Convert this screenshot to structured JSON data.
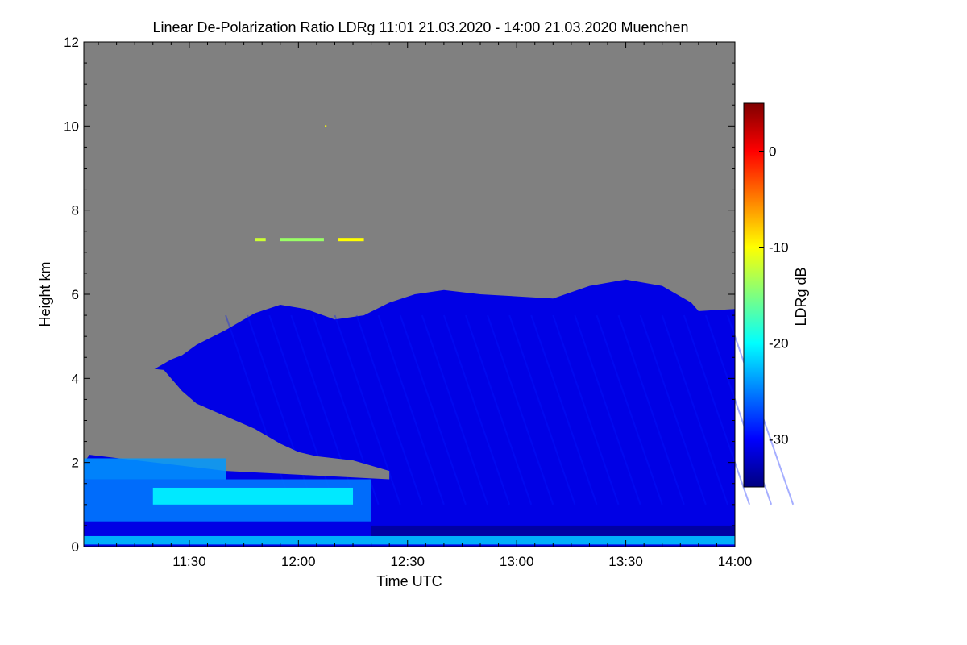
{
  "chart_data": {
    "type": "heatmap",
    "title": "Linear De-Polarization Ratio LDRg   11:01 21.03.2020 - 14:00 21.03.2020 Muenchen",
    "xlabel": "Time UTC",
    "ylabel": "Height km",
    "x_range_min": [
      661,
      840
    ],
    "x_ticks_min": [
      690,
      720,
      750,
      780,
      810,
      840
    ],
    "x_tick_labels": [
      "11:30",
      "12:00",
      "12:30",
      "13:00",
      "13:30",
      "14:00"
    ],
    "ylim": [
      0,
      12
    ],
    "y_ticks": [
      0,
      2,
      4,
      6,
      8,
      10,
      12
    ],
    "y_tick_labels": [
      "0",
      "2",
      "4",
      "6",
      "8",
      "10",
      "12"
    ],
    "background_color": "#808080",
    "colorbar": {
      "label": "LDRg dB",
      "range": [
        -35,
        5
      ],
      "ticks": [
        0,
        -10,
        -20,
        -30
      ],
      "tick_labels": [
        "0",
        "-10",
        "-20",
        "-30"
      ],
      "colormap": [
        "#00007f",
        "#0000ff",
        "#007fff",
        "#00ffff",
        "#7fff7f",
        "#ffff00",
        "#ff7f00",
        "#ff0000",
        "#7f0000"
      ]
    },
    "cloud_top_km": {
      "time_min": [
        680,
        685,
        688,
        692,
        700,
        708,
        715,
        722,
        730,
        738,
        745,
        752,
        760,
        770,
        780,
        790,
        800,
        810,
        820,
        828,
        830,
        840
      ],
      "height": [
        4.2,
        4.45,
        4.55,
        4.8,
        5.15,
        5.55,
        5.75,
        5.65,
        5.4,
        5.5,
        5.8,
        6.0,
        6.1,
        6.0,
        5.95,
        5.9,
        6.2,
        6.35,
        6.2,
        5.8,
        5.6,
        5.65
      ]
    },
    "cloud_base_km": {
      "time_min": [
        683,
        688,
        692,
        700,
        708,
        715,
        720,
        725,
        735,
        745
      ],
      "height": [
        4.2,
        3.7,
        3.4,
        3.1,
        2.8,
        2.45,
        2.25,
        2.15,
        2.05,
        1.8
      ]
    },
    "annotations": [
      {
        "type": "cirrus_layer",
        "time_min": [
          715,
          727
        ],
        "height": 7.3,
        "ldr": -14
      },
      {
        "type": "cirrus_layer",
        "time_min": [
          731,
          738
        ],
        "height": 7.3,
        "ldr": -10
      },
      {
        "type": "cirrus_layer",
        "time_min": [
          708,
          711
        ],
        "height": 7.3,
        "ldr": -12
      },
      {
        "type": "point",
        "time_min": 727.5,
        "height": 10.0,
        "ldr": -10
      }
    ],
    "mean_ldr_in_cloud": -31
  }
}
